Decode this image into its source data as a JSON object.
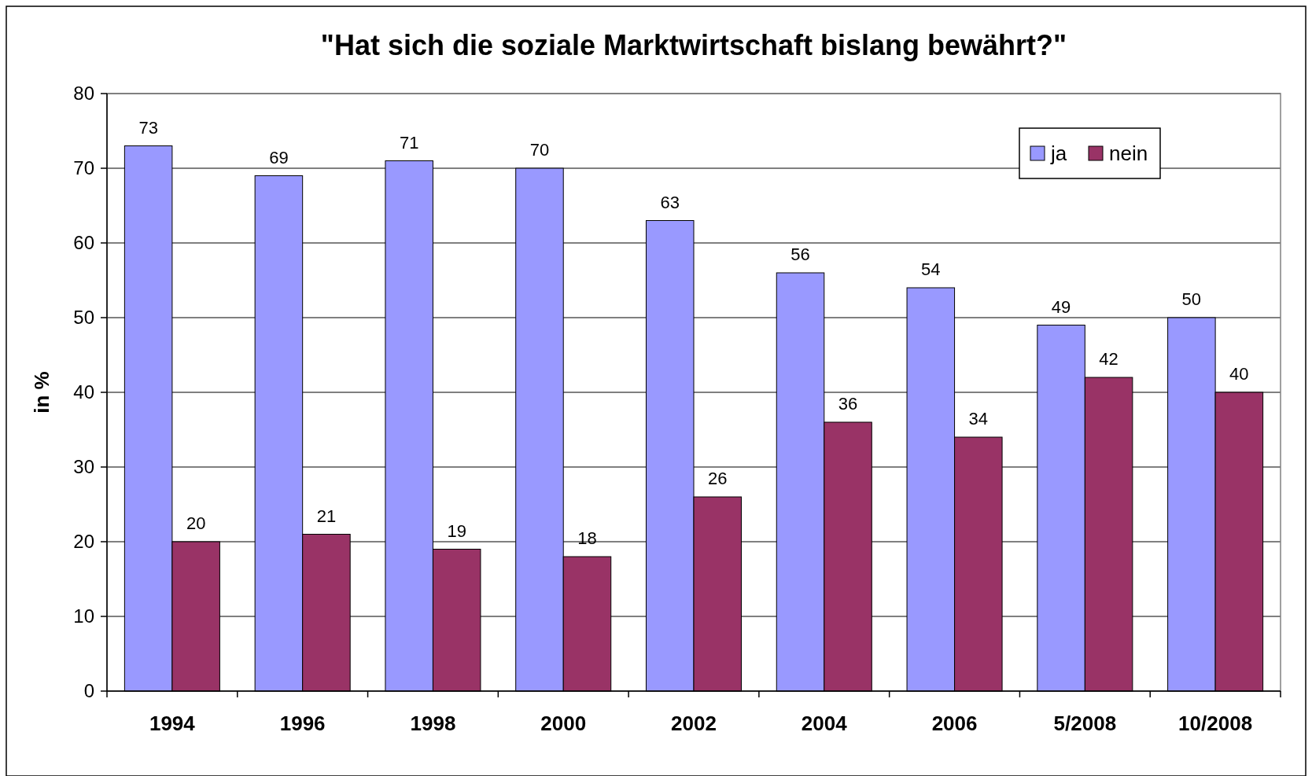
{
  "chart_data": {
    "type": "bar",
    "title": "\"Hat sich die soziale Marktwirtschaft bislang bewährt?\"",
    "ylabel": "in %",
    "categories": [
      "1994",
      "1996",
      "1998",
      "2000",
      "2002",
      "2004",
      "2006",
      "5/2008",
      "10/2008"
    ],
    "series": [
      {
        "name": "ja",
        "color": "#9999ff",
        "values": [
          73,
          69,
          71,
          70,
          63,
          56,
          54,
          49,
          50
        ]
      },
      {
        "name": "nein",
        "color": "#993366",
        "values": [
          20,
          21,
          19,
          18,
          26,
          36,
          34,
          42,
          40
        ]
      }
    ],
    "ylim": [
      0,
      80
    ],
    "yticks": [
      0,
      10,
      20,
      30,
      40,
      50,
      60,
      70,
      80
    ],
    "grid": "y",
    "legend": "top right",
    "data_labels": true
  }
}
